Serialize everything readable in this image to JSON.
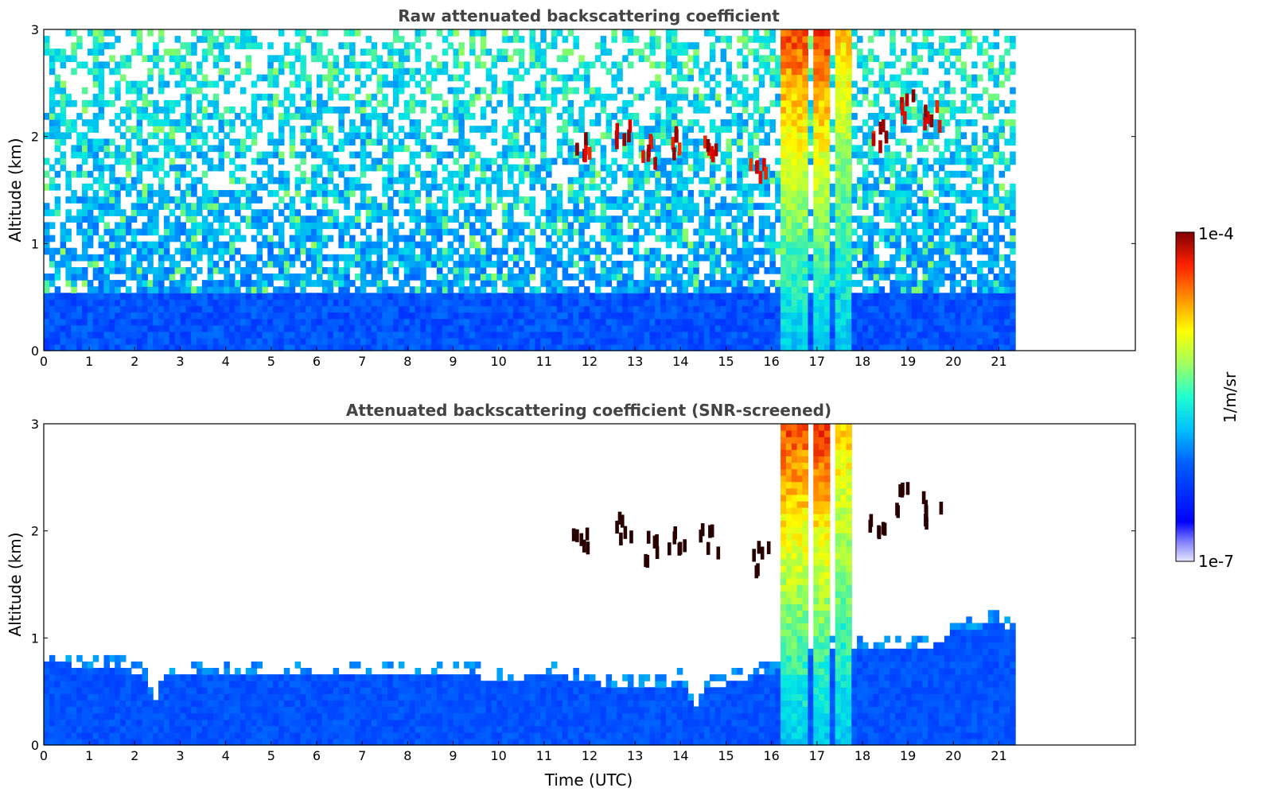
{
  "chart_data": [
    {
      "type": "heatmap",
      "title": "Raw attenuated backscattering coefficient",
      "xlabel": "",
      "ylabel": "Altitude (km)",
      "xlim": [
        0,
        24
      ],
      "ylim": [
        0,
        3
      ],
      "x_ticks": [
        0,
        1,
        2,
        3,
        4,
        5,
        6,
        7,
        8,
        9,
        10,
        11,
        12,
        13,
        14,
        15,
        16,
        17,
        18,
        19,
        20,
        21
      ],
      "y_ticks": [
        0,
        1,
        2,
        3
      ],
      "data_end_time": 21.3,
      "screened": false,
      "clouds": [
        {
          "t0": 16.15,
          "t1": 16.75,
          "level": 0.92
        },
        {
          "t0": 16.95,
          "t1": 17.25,
          "level": 0.95
        },
        {
          "t0": 17.35,
          "t1": 17.75,
          "level": 0.7
        }
      ],
      "cloud_patches": [
        {
          "t": 11.8,
          "h": 1.95
        },
        {
          "t": 12.7,
          "h": 2.05
        },
        {
          "t": 13.3,
          "h": 1.85
        },
        {
          "t": 13.9,
          "h": 1.95
        },
        {
          "t": 14.6,
          "h": 1.9
        },
        {
          "t": 15.7,
          "h": 1.75
        },
        {
          "t": 18.3,
          "h": 2.0
        },
        {
          "t": 18.9,
          "h": 2.3
        },
        {
          "t": 19.5,
          "h": 2.2
        }
      ]
    },
    {
      "type": "heatmap",
      "title": "Attenuated backscattering coefficient (SNR-screened)",
      "xlabel": "Time (UTC)",
      "ylabel": "Altitude (km)",
      "xlim": [
        0,
        24
      ],
      "ylim": [
        0,
        3
      ],
      "x_ticks": [
        0,
        1,
        2,
        3,
        4,
        5,
        6,
        7,
        8,
        9,
        10,
        11,
        12,
        13,
        14,
        15,
        16,
        17,
        18,
        19,
        20,
        21
      ],
      "y_ticks": [
        0,
        1,
        2,
        3
      ],
      "data_end_time": 21.3,
      "screened": true,
      "boundary_layer_top_km": [
        [
          0,
          0.75
        ],
        [
          1,
          0.7
        ],
        [
          2,
          0.65
        ],
        [
          2.4,
          0.4
        ],
        [
          2.6,
          0.65
        ],
        [
          4,
          0.65
        ],
        [
          5,
          0.65
        ],
        [
          6,
          0.6
        ],
        [
          7,
          0.65
        ],
        [
          8,
          0.6
        ],
        [
          9,
          0.65
        ],
        [
          10,
          0.55
        ],
        [
          11,
          0.65
        ],
        [
          12,
          0.55
        ],
        [
          13,
          0.5
        ],
        [
          14,
          0.55
        ],
        [
          14.3,
          0.3
        ],
        [
          14.5,
          0.5
        ],
        [
          15,
          0.55
        ],
        [
          16,
          0.65
        ],
        [
          17,
          0.85
        ],
        [
          18,
          0.9
        ],
        [
          19,
          0.85
        ],
        [
          19.5,
          0.9
        ],
        [
          20,
          1.05
        ],
        [
          21,
          1.1
        ],
        [
          21.3,
          1.05
        ]
      ],
      "clouds": [
        {
          "t0": 16.15,
          "t1": 16.75,
          "level": 0.92
        },
        {
          "t0": 16.95,
          "t1": 17.25,
          "level": 0.95
        },
        {
          "t0": 17.35,
          "t1": 17.75,
          "level": 0.7
        }
      ],
      "cloud_patches": [
        {
          "t": 11.8,
          "h": 1.95
        },
        {
          "t": 12.7,
          "h": 2.05
        },
        {
          "t": 13.3,
          "h": 1.85
        },
        {
          "t": 13.9,
          "h": 1.95
        },
        {
          "t": 14.6,
          "h": 1.9
        },
        {
          "t": 15.7,
          "h": 1.75
        },
        {
          "t": 18.3,
          "h": 2.0
        },
        {
          "t": 18.9,
          "h": 2.3
        },
        {
          "t": 19.5,
          "h": 2.2
        }
      ]
    }
  ],
  "colorbar": {
    "label": "1/m/sr",
    "max_label": "1e-4",
    "min_label": "1e-7",
    "colormap": "jet"
  }
}
